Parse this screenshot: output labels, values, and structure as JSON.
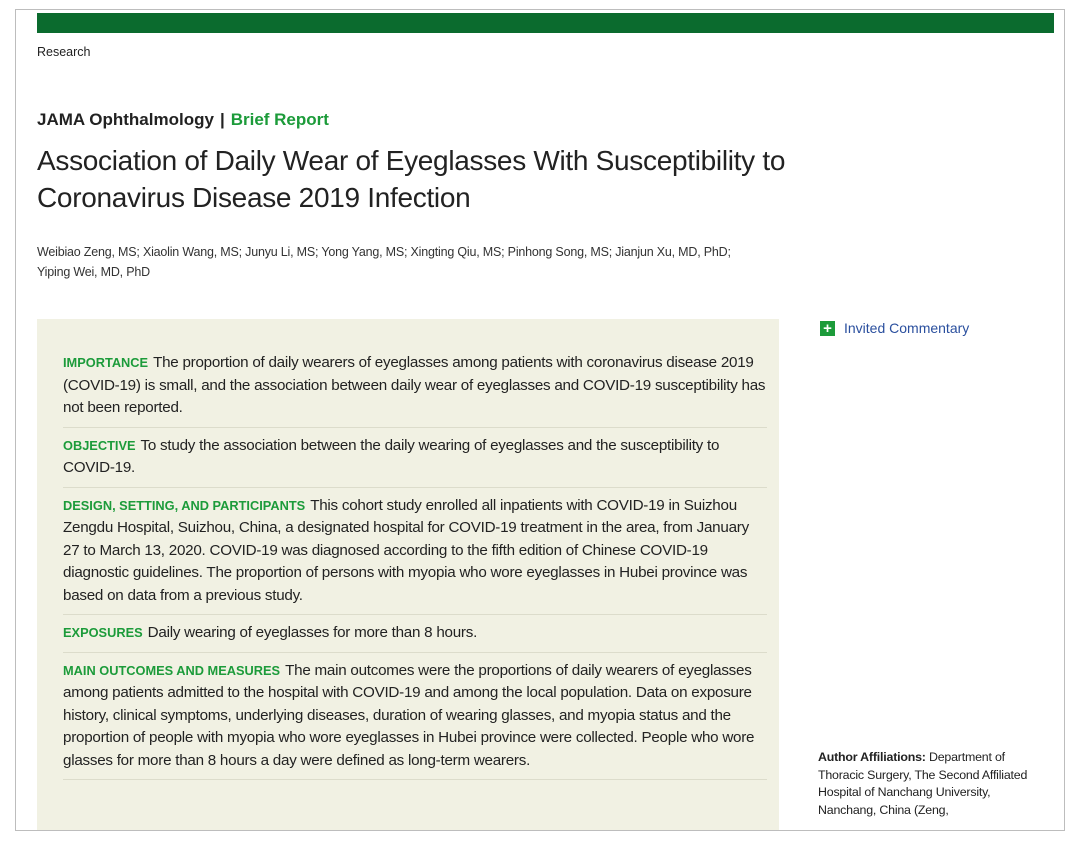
{
  "header": {
    "section": "Research",
    "journal": "JAMA Ophthalmology",
    "separator": "|",
    "article_type": "Brief Report"
  },
  "title": "Association of Daily Wear of Eyeglasses With Susceptibility to Coronavirus Disease 2019 Infection",
  "authors": "Weibiao Zeng, MS; Xiaolin Wang, MS; Junyu Li, MS; Yong Yang, MS; Xingting Qiu, MS; Pinhong Song, MS; Jianjun Xu, MD, PhD; Yiping Wei, MD, PhD",
  "abstract": {
    "sections": [
      {
        "heading": "IMPORTANCE",
        "text": "The proportion of daily wearers of eyeglasses among patients with coronavirus disease 2019 (COVID-19) is small, and the association between daily wear of eyeglasses and COVID-19 susceptibility has not been reported."
      },
      {
        "heading": "OBJECTIVE",
        "text": "To study the association between the daily wearing of eyeglasses and the susceptibility to COVID-19."
      },
      {
        "heading": "DESIGN, SETTING, AND PARTICIPANTS",
        "text": "This cohort study enrolled all inpatients with COVID-19 in Suizhou Zengdu Hospital, Suizhou, China, a designated hospital for COVID-19 treatment in the area, from January 27 to March 13, 2020. COVID-19 was diagnosed according to the fifth edition of Chinese COVID-19 diagnostic guidelines. The proportion of persons with myopia who wore eyeglasses in Hubei province was based on data from a previous study."
      },
      {
        "heading": "EXPOSURES",
        "text": "Daily wearing of eyeglasses for more than 8 hours."
      },
      {
        "heading": "MAIN OUTCOMES AND MEASURES",
        "text": "The main outcomes were the proportions of daily wearers of eyeglasses among patients admitted to the hospital with COVID-19 and among the local population. Data on exposure history, clinical symptoms, underlying diseases, duration of wearing glasses, and myopia status and the proportion of people with myopia who wore eyeglasses in Hubei province were collected. People who wore glasses for more than 8 hours a day were defined as long-term wearers."
      }
    ]
  },
  "sidebar": {
    "invited_commentary": "Invited Commentary",
    "affiliations": {
      "label": "Author Affiliations:",
      "text": "Department of Thoracic Surgery, The Second Affiliated Hospital of Nanchang University, Nanchang, China (Zeng,"
    }
  }
}
